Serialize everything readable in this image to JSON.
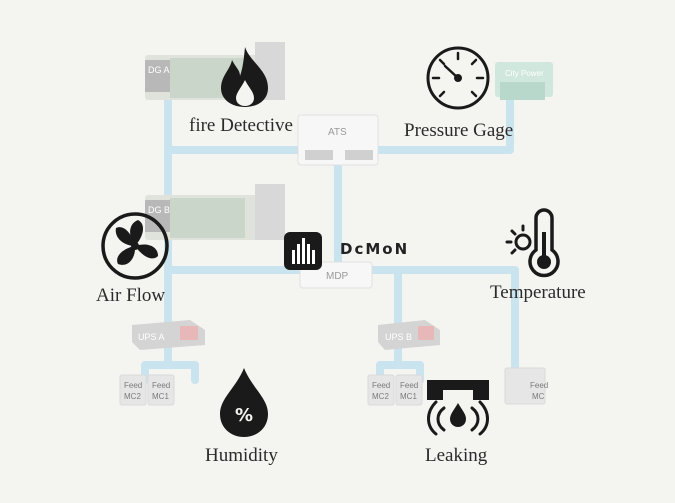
{
  "brand": {
    "name": "DcMoN"
  },
  "equipment": {
    "ats": "ATS",
    "mdp": "MDP",
    "dg_a": "DG A",
    "dg_b": "DG B",
    "city_power": "City Power",
    "ups_a": "UPS A",
    "ups_b": "UPS B",
    "feeds": [
      {
        "line1": "Feed",
        "line2": "MC2"
      },
      {
        "line1": "Feed",
        "line2": "MC1"
      },
      {
        "line1": "Feed",
        "line2": "MC2"
      },
      {
        "line1": "Feed",
        "line2": "MC1"
      },
      {
        "line1": "Feed",
        "line2": "MC"
      }
    ]
  },
  "sensors": {
    "fire": "fire Detective",
    "pressure": "Pressure Gage",
    "airflow": "Air Flow",
    "temperature": "Temperature",
    "humidity": "Humidity",
    "leaking": "Leaking"
  },
  "colors": {
    "pipe": "#c9e3ef",
    "equipment": "#dcdcdc",
    "icon": "#1a1a1a",
    "background": "#f4f4f1"
  },
  "icons": [
    "fire-icon",
    "pressure-gauge-icon",
    "fan-icon",
    "thermometer-icon",
    "humidity-drop-icon",
    "leak-icon",
    "dcmon-logo-icon"
  ]
}
